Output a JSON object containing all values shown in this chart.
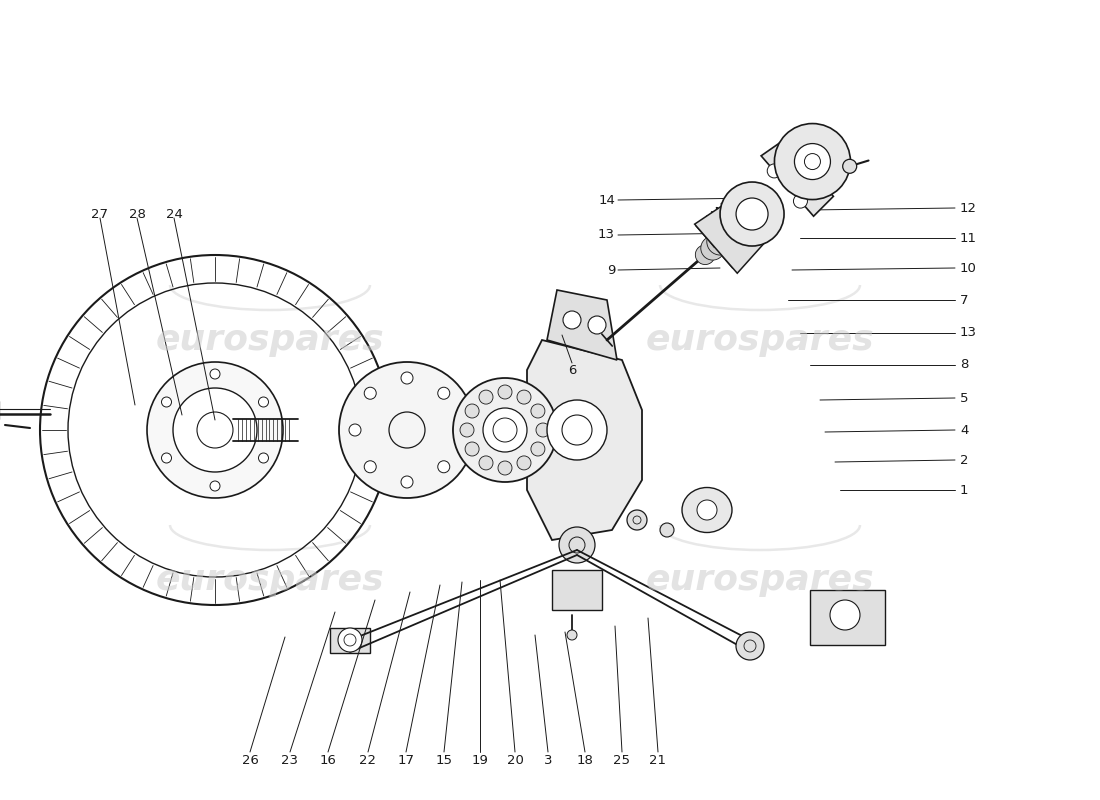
{
  "background_color": "#ffffff",
  "line_color": "#1a1a1a",
  "watermark_color": "#cccccc",
  "watermark_text": "eurospares",
  "fig_width": 11.0,
  "fig_height": 8.0,
  "dpi": 100
}
